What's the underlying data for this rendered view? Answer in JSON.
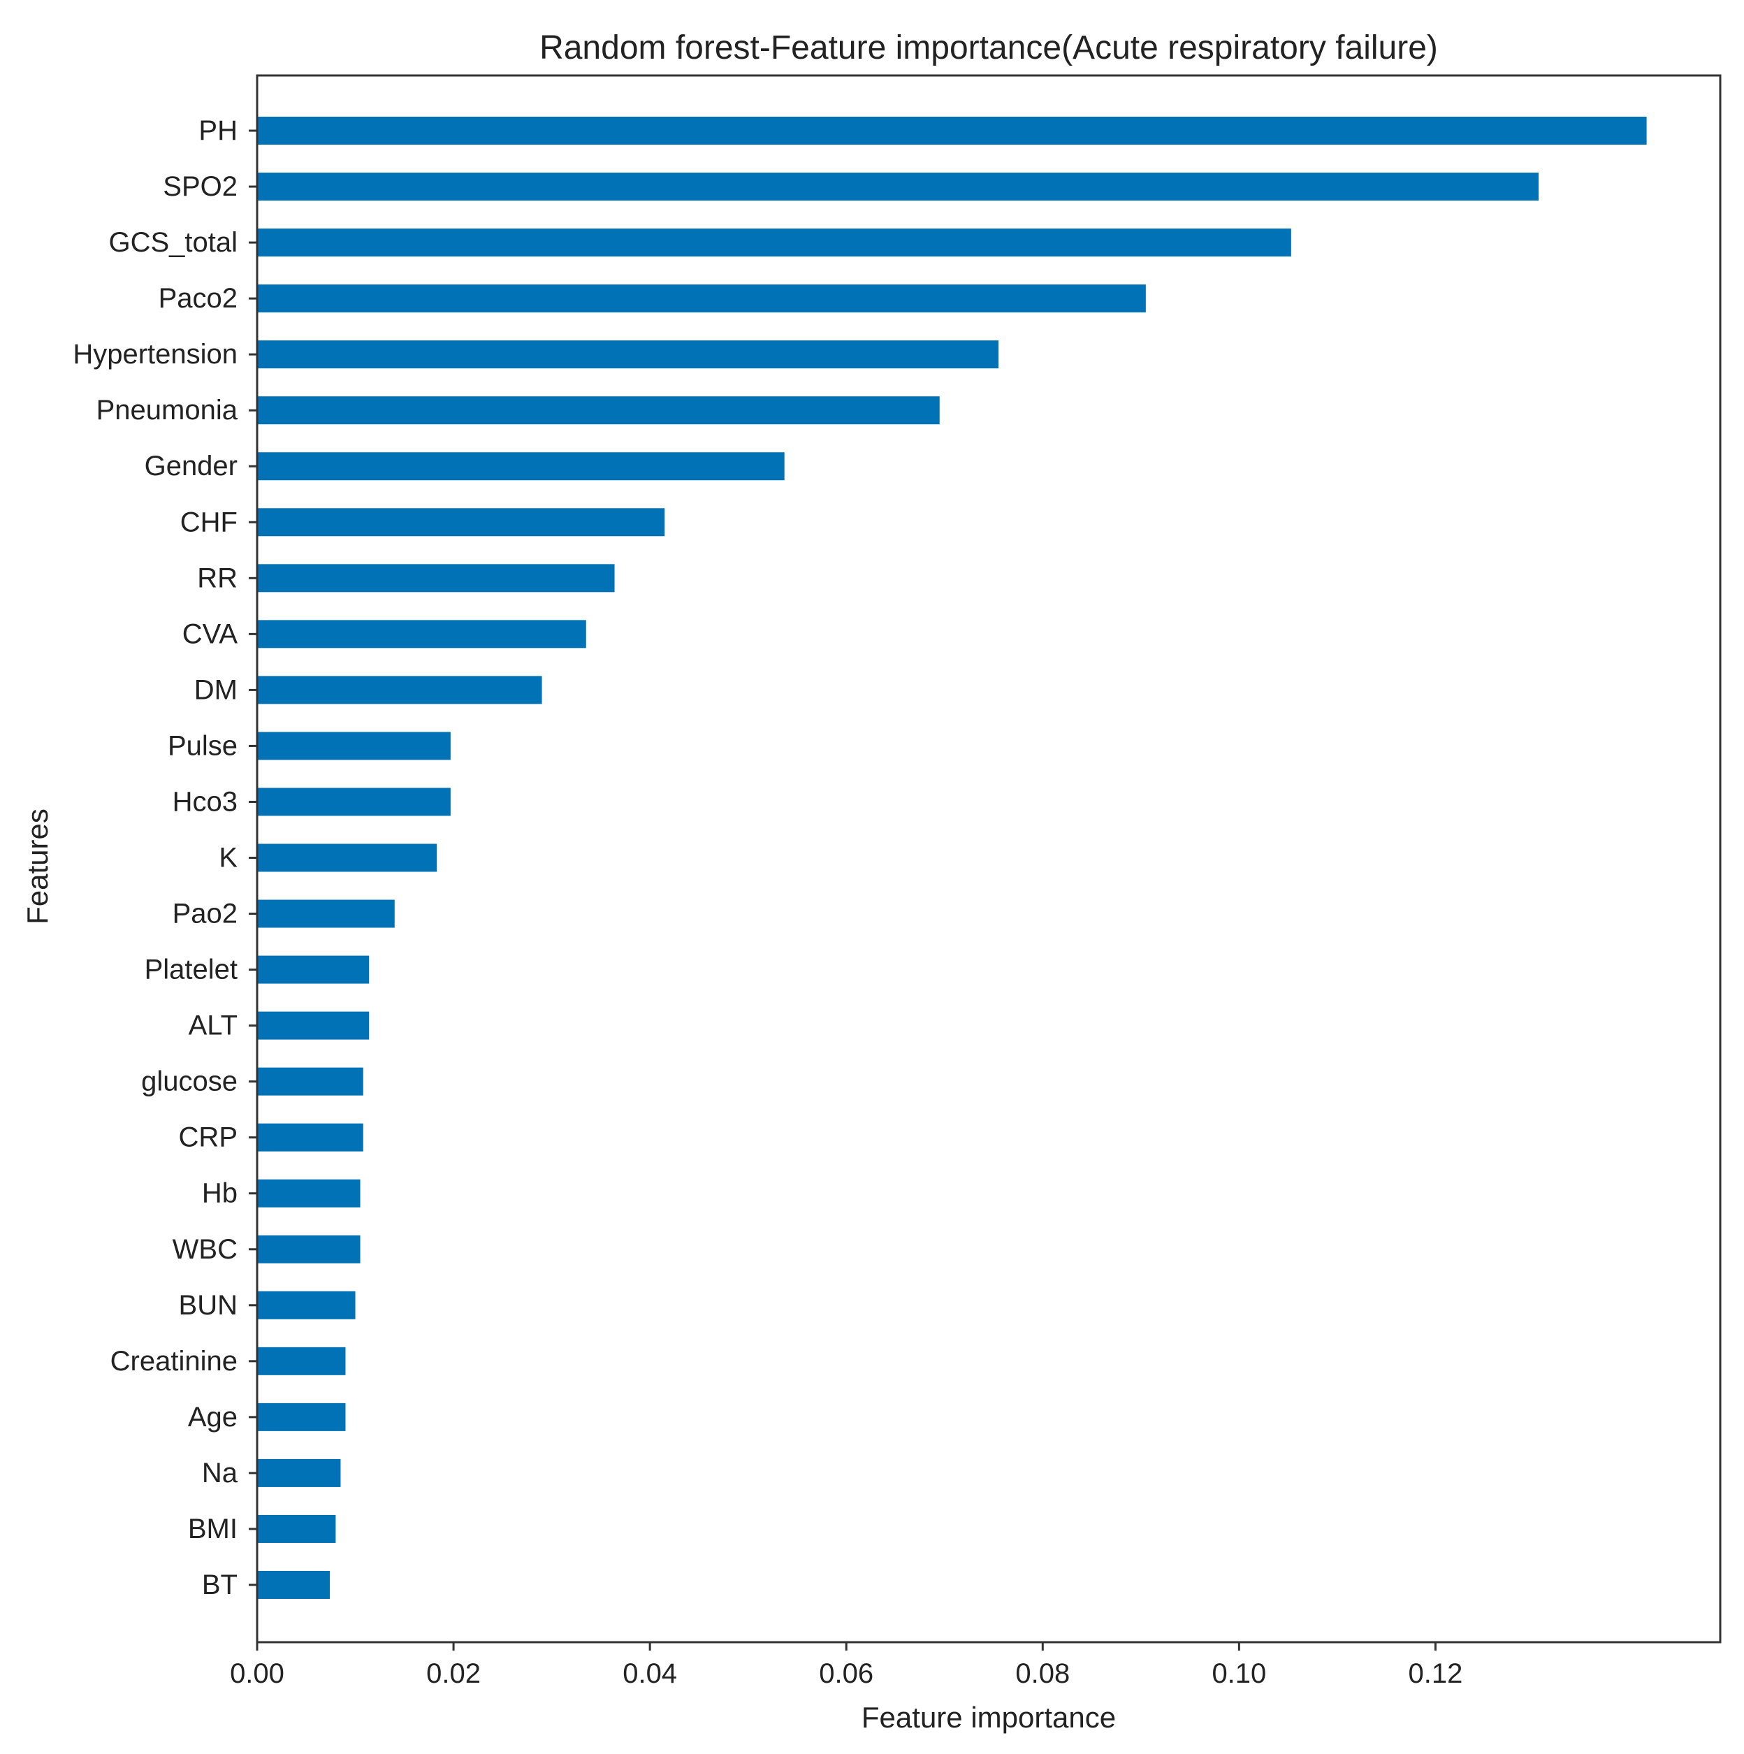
{
  "chart_data": {
    "type": "bar",
    "orientation": "horizontal",
    "title": "Random forest-Feature importance(Acute respiratory failure)",
    "xlabel": "Feature importance",
    "ylabel": "Features",
    "xlim": [
      0,
      0.149
    ],
    "xticks": [
      0.0,
      0.02,
      0.04,
      0.06,
      0.08,
      0.1,
      0.12
    ],
    "xtick_labels": [
      "0.00",
      "0.02",
      "0.04",
      "0.06",
      "0.08",
      "0.10",
      "0.12"
    ],
    "grid": false,
    "bar_color": "#0072b5",
    "categories": [
      "PH",
      "SPO2",
      "GCS_total",
      "Paco2",
      "Hypertension",
      "Pneumonia",
      "Gender",
      "CHF",
      "RR",
      "CVA",
      "DM",
      "Pulse",
      "Hco3",
      "K",
      "Pao2",
      "Platelet",
      "ALT",
      "glucose",
      "CRP",
      "Hb",
      "WBC",
      "BUN",
      "Creatinine",
      "Age",
      "Na",
      "BMI",
      "BT"
    ],
    "values": [
      0.1415,
      0.1305,
      0.1053,
      0.0905,
      0.0755,
      0.0695,
      0.0537,
      0.0415,
      0.0364,
      0.0335,
      0.029,
      0.0197,
      0.0197,
      0.0183,
      0.014,
      0.0114,
      0.0114,
      0.0108,
      0.0108,
      0.0105,
      0.0105,
      0.01,
      0.009,
      0.009,
      0.0085,
      0.008,
      0.0074
    ]
  }
}
